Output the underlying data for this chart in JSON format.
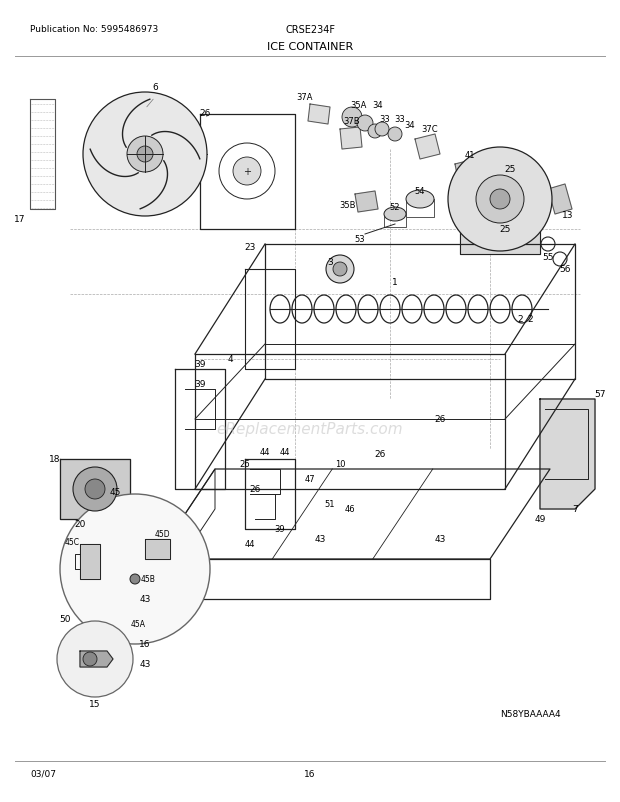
{
  "title": "ICE CONTAINER",
  "model": "CRSE234F",
  "publication": "Publication No: 5995486973",
  "diagram_code": "N58YBAAAA4",
  "date": "03/07",
  "page": "16",
  "bg_color": "#ffffff",
  "text_color": "#000000",
  "fig_width": 6.2,
  "fig_height": 8.03,
  "dpi": 100,
  "watermark": "eReplacementParts.com",
  "lc": "#555555",
  "lc_dark": "#222222"
}
